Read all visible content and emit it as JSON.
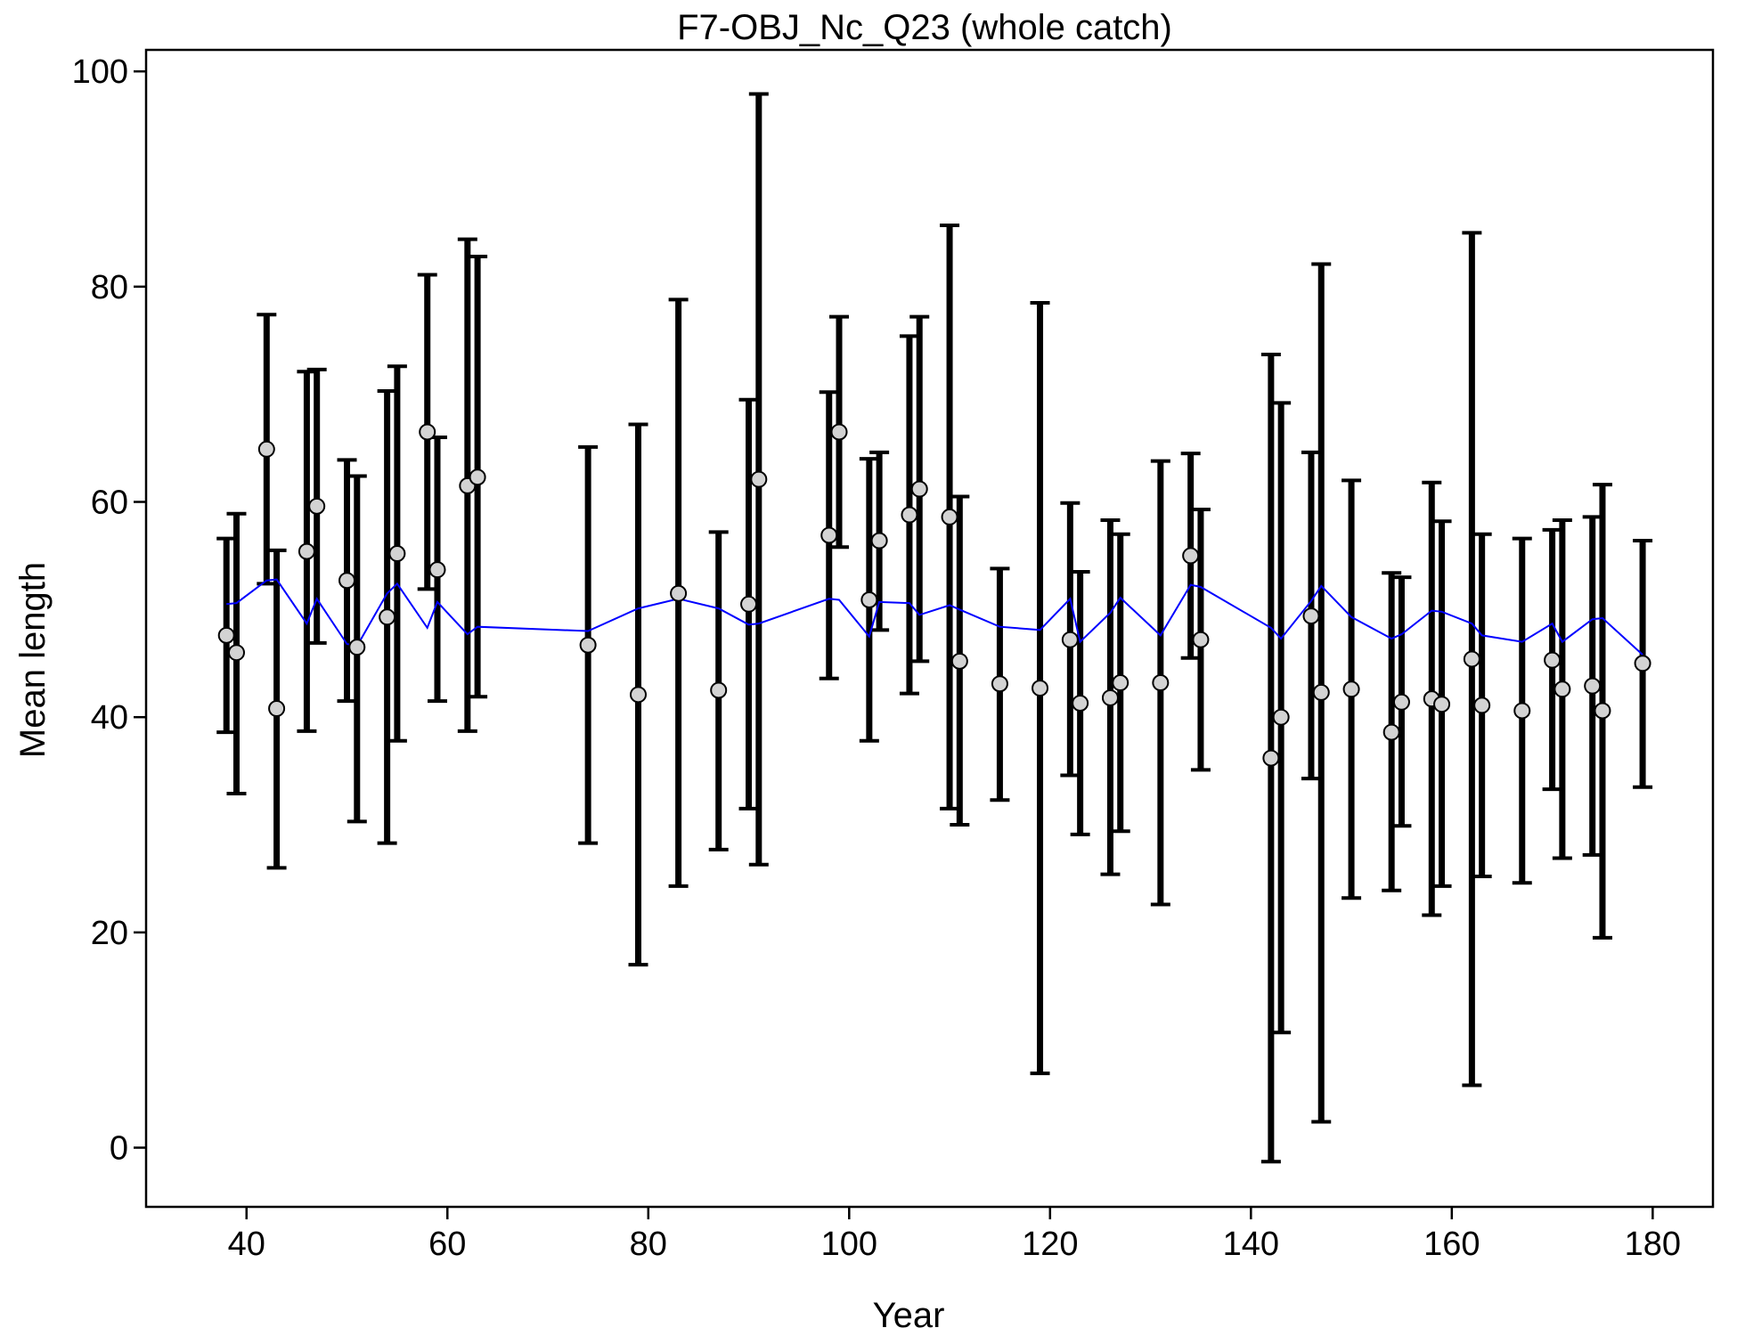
{
  "chart_data": {
    "type": "scatter",
    "title": "F7-OBJ_Nc_Q23 (whole catch)",
    "xlabel": "Year",
    "ylabel": "Mean length",
    "xlim": [
      30,
      186
    ],
    "ylim": [
      -5.5,
      102
    ],
    "grid": false,
    "x_ticks": [
      40,
      60,
      80,
      100,
      120,
      140,
      160,
      180
    ],
    "y_ticks": [
      0,
      20,
      40,
      60,
      80,
      100
    ],
    "x_tick_labels": [
      "40",
      "60",
      "80",
      "100",
      "120",
      "140",
      "160",
      "180"
    ],
    "y_tick_labels": [
      "0",
      "20",
      "40",
      "60",
      "80",
      "100"
    ],
    "colors": {
      "points": "#d3d3d3",
      "error_bars": "#000000",
      "expected_line": "#0000ff"
    },
    "series": [
      {
        "values": [
          {
            "x": 38,
            "y": 47.6,
            "lo": 38.6,
            "hi": 56.6
          },
          {
            "x": 39,
            "y": 46.0,
            "lo": 32.9,
            "hi": 58.9
          },
          {
            "x": 42,
            "y": 64.9,
            "lo": 52.4,
            "hi": 77.4
          },
          {
            "x": 43,
            "y": 40.8,
            "lo": 26.0,
            "hi": 55.5
          },
          {
            "x": 46,
            "y": 55.4,
            "lo": 38.7,
            "hi": 72.1
          },
          {
            "x": 47,
            "y": 59.6,
            "lo": 46.9,
            "hi": 72.3
          },
          {
            "x": 50,
            "y": 52.7,
            "lo": 41.5,
            "hi": 63.9
          },
          {
            "x": 51,
            "y": 46.5,
            "lo": 30.3,
            "hi": 62.4
          },
          {
            "x": 54,
            "y": 49.3,
            "lo": 28.3,
            "hi": 70.3
          },
          {
            "x": 55,
            "y": 55.2,
            "lo": 37.8,
            "hi": 72.6
          },
          {
            "x": 58,
            "y": 66.5,
            "lo": 51.9,
            "hi": 81.1
          },
          {
            "x": 59,
            "y": 53.7,
            "lo": 41.5,
            "hi": 66.0
          },
          {
            "x": 62,
            "y": 61.5,
            "lo": 38.7,
            "hi": 84.4
          },
          {
            "x": 63,
            "y": 62.3,
            "lo": 41.9,
            "hi": 82.8
          },
          {
            "x": 74,
            "y": 46.7,
            "lo": 28.3,
            "hi": 65.1
          },
          {
            "x": 79,
            "y": 42.1,
            "lo": 17.0,
            "hi": 67.2
          },
          {
            "x": 83,
            "y": 51.5,
            "lo": 24.3,
            "hi": 78.8
          },
          {
            "x": 87,
            "y": 42.5,
            "lo": 27.7,
            "hi": 57.2
          },
          {
            "x": 90,
            "y": 50.5,
            "lo": 31.5,
            "hi": 69.5
          },
          {
            "x": 91,
            "y": 62.1,
            "lo": 26.3,
            "hi": 97.9
          },
          {
            "x": 98,
            "y": 56.9,
            "lo": 43.6,
            "hi": 70.2
          },
          {
            "x": 99,
            "y": 66.5,
            "lo": 55.8,
            "hi": 77.2
          },
          {
            "x": 102,
            "y": 50.9,
            "lo": 37.8,
            "hi": 64.0
          },
          {
            "x": 103,
            "y": 56.4,
            "lo": 48.1,
            "hi": 64.6
          },
          {
            "x": 106,
            "y": 58.8,
            "lo": 42.2,
            "hi": 75.4
          },
          {
            "x": 107,
            "y": 61.2,
            "lo": 45.2,
            "hi": 77.2
          },
          {
            "x": 110,
            "y": 58.6,
            "lo": 31.5,
            "hi": 85.7
          },
          {
            "x": 111,
            "y": 45.2,
            "lo": 30.0,
            "hi": 60.5
          },
          {
            "x": 115,
            "y": 43.1,
            "lo": 32.3,
            "hi": 53.8
          },
          {
            "x": 119,
            "y": 42.7,
            "lo": 6.9,
            "hi": 78.5
          },
          {
            "x": 122,
            "y": 47.2,
            "lo": 34.6,
            "hi": 59.9
          },
          {
            "x": 123,
            "y": 41.3,
            "lo": 29.1,
            "hi": 53.5
          },
          {
            "x": 126,
            "y": 41.8,
            "lo": 25.4,
            "hi": 58.3
          },
          {
            "x": 127,
            "y": 43.2,
            "lo": 29.4,
            "hi": 57.0
          },
          {
            "x": 131,
            "y": 43.2,
            "lo": 22.6,
            "hi": 63.8
          },
          {
            "x": 134,
            "y": 55.0,
            "lo": 45.5,
            "hi": 64.5
          },
          {
            "x": 135,
            "y": 47.2,
            "lo": 35.1,
            "hi": 59.3
          },
          {
            "x": 142,
            "y": 36.2,
            "lo": -1.3,
            "hi": 73.7
          },
          {
            "x": 143,
            "y": 40.0,
            "lo": 10.7,
            "hi": 69.2
          },
          {
            "x": 146,
            "y": 49.4,
            "lo": 34.3,
            "hi": 64.6
          },
          {
            "x": 147,
            "y": 42.3,
            "lo": 2.4,
            "hi": 82.1
          },
          {
            "x": 150,
            "y": 42.6,
            "lo": 23.2,
            "hi": 62.0
          },
          {
            "x": 154,
            "y": 38.6,
            "lo": 23.9,
            "hi": 53.4
          },
          {
            "x": 155,
            "y": 41.4,
            "lo": 29.9,
            "hi": 53.0
          },
          {
            "x": 158,
            "y": 41.7,
            "lo": 21.6,
            "hi": 61.8
          },
          {
            "x": 159,
            "y": 41.2,
            "lo": 24.3,
            "hi": 58.2
          },
          {
            "x": 162,
            "y": 45.4,
            "lo": 5.8,
            "hi": 85.0
          },
          {
            "x": 163,
            "y": 41.1,
            "lo": 25.2,
            "hi": 57.0
          },
          {
            "x": 167,
            "y": 40.6,
            "lo": 24.6,
            "hi": 56.6
          },
          {
            "x": 170,
            "y": 45.3,
            "lo": 33.3,
            "hi": 57.4
          },
          {
            "x": 171,
            "y": 42.6,
            "lo": 26.9,
            "hi": 58.3
          },
          {
            "x": 174,
            "y": 42.9,
            "lo": 27.2,
            "hi": 58.6
          },
          {
            "x": 175,
            "y": 40.6,
            "lo": 19.5,
            "hi": 61.6
          },
          {
            "x": 179,
            "y": 45.0,
            "lo": 33.5,
            "hi": 56.4
          }
        ]
      },
      {
        "type": "line",
        "values": [
          {
            "x": 38,
            "y": 50.5
          },
          {
            "x": 39,
            "y": 50.6
          },
          {
            "x": 42,
            "y": 52.7
          },
          {
            "x": 43,
            "y": 52.8
          },
          {
            "x": 46,
            "y": 48.7
          },
          {
            "x": 47,
            "y": 51.0
          },
          {
            "x": 50,
            "y": 46.8
          },
          {
            "x": 51,
            "y": 46.6
          },
          {
            "x": 54,
            "y": 51.5
          },
          {
            "x": 55,
            "y": 52.4
          },
          {
            "x": 58,
            "y": 48.3
          },
          {
            "x": 59,
            "y": 50.7
          },
          {
            "x": 62,
            "y": 47.7
          },
          {
            "x": 63,
            "y": 48.4
          },
          {
            "x": 74,
            "y": 48.0
          },
          {
            "x": 79,
            "y": 50.1
          },
          {
            "x": 83,
            "y": 51.0
          },
          {
            "x": 87,
            "y": 50.1
          },
          {
            "x": 90,
            "y": 48.6
          },
          {
            "x": 91,
            "y": 48.7
          },
          {
            "x": 98,
            "y": 51.0
          },
          {
            "x": 99,
            "y": 50.9
          },
          {
            "x": 102,
            "y": 47.5
          },
          {
            "x": 103,
            "y": 50.7
          },
          {
            "x": 106,
            "y": 50.6
          },
          {
            "x": 107,
            "y": 49.5
          },
          {
            "x": 110,
            "y": 50.4
          },
          {
            "x": 111,
            "y": 50.0
          },
          {
            "x": 115,
            "y": 48.4
          },
          {
            "x": 119,
            "y": 48.1
          },
          {
            "x": 122,
            "y": 51.0
          },
          {
            "x": 123,
            "y": 47.0
          },
          {
            "x": 126,
            "y": 49.7
          },
          {
            "x": 127,
            "y": 51.1
          },
          {
            "x": 131,
            "y": 47.6
          },
          {
            "x": 134,
            "y": 52.3
          },
          {
            "x": 135,
            "y": 52.1
          },
          {
            "x": 142,
            "y": 48.3
          },
          {
            "x": 143,
            "y": 47.3
          },
          {
            "x": 146,
            "y": 50.8
          },
          {
            "x": 147,
            "y": 52.2
          },
          {
            "x": 150,
            "y": 49.3
          },
          {
            "x": 154,
            "y": 47.3
          },
          {
            "x": 155,
            "y": 47.7
          },
          {
            "x": 158,
            "y": 49.9
          },
          {
            "x": 159,
            "y": 49.8
          },
          {
            "x": 162,
            "y": 48.7
          },
          {
            "x": 163,
            "y": 47.6
          },
          {
            "x": 167,
            "y": 47.0
          },
          {
            "x": 170,
            "y": 48.7
          },
          {
            "x": 171,
            "y": 47.0
          },
          {
            "x": 174,
            "y": 49.1
          },
          {
            "x": 175,
            "y": 49.2
          },
          {
            "x": 179,
            "y": 45.8
          }
        ]
      }
    ]
  }
}
